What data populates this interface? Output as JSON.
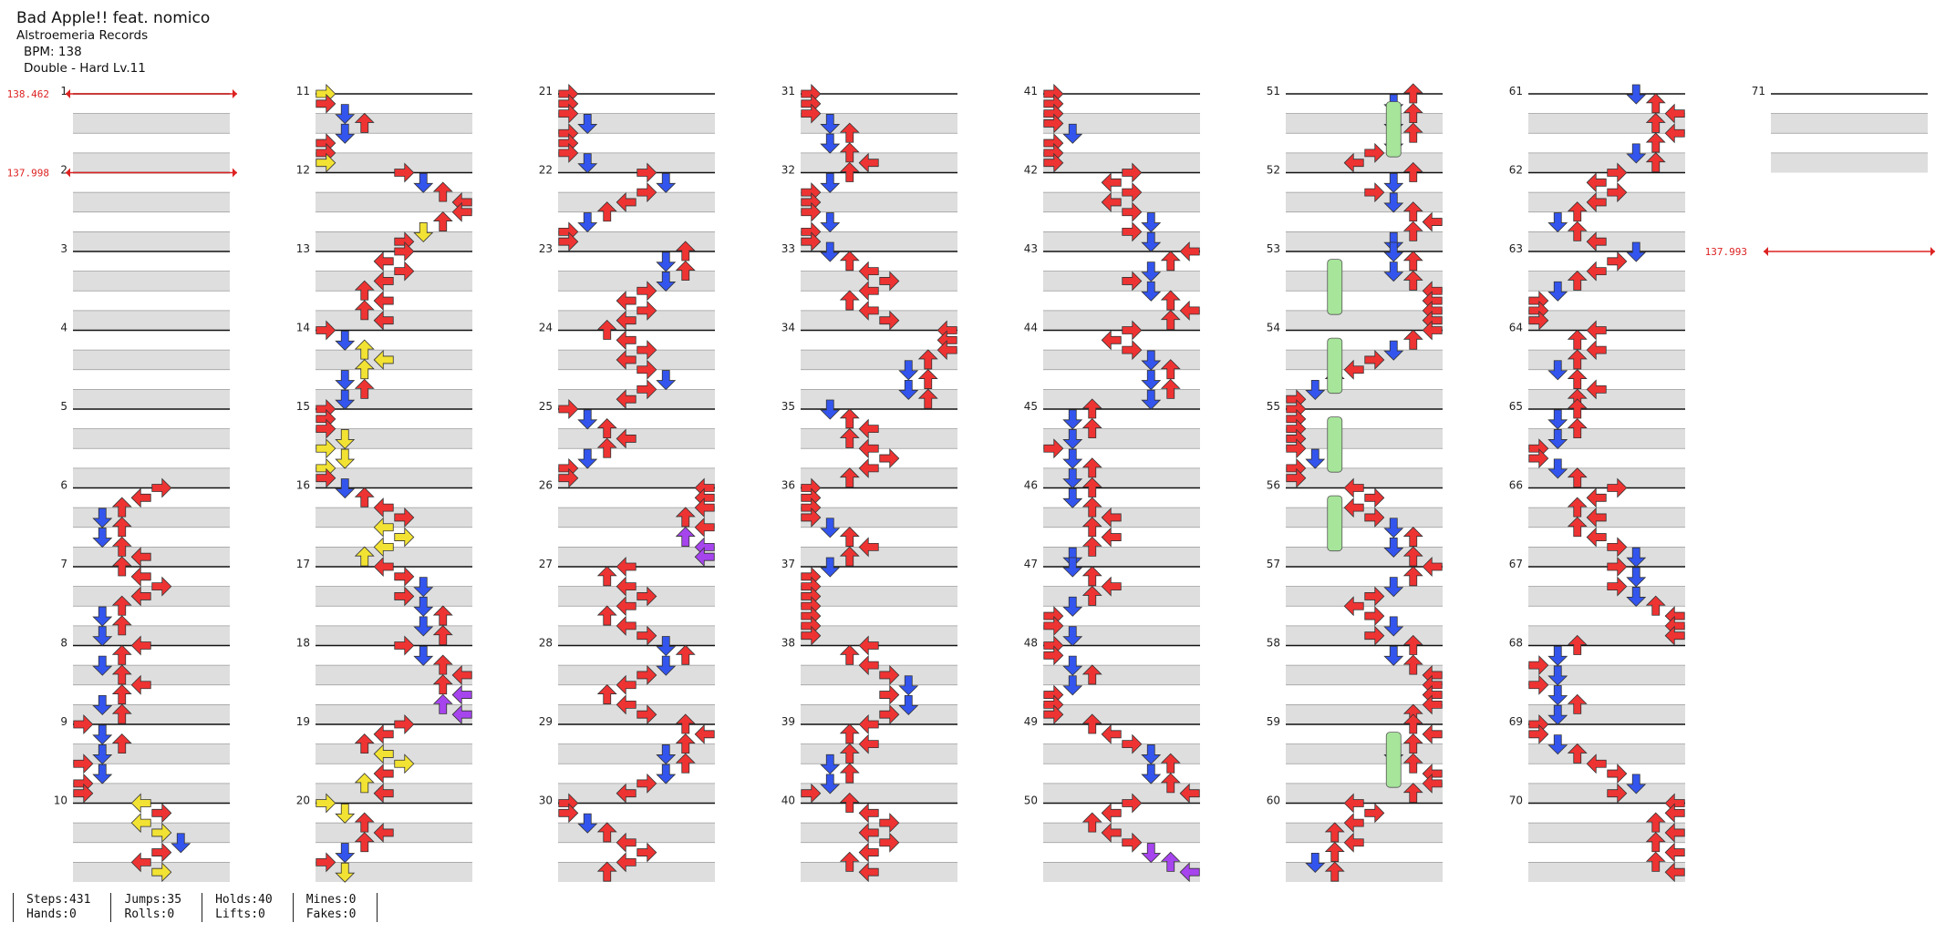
{
  "header": {
    "title": "Bad Apple!! feat. nomico",
    "artist": "Alstroemeria Records",
    "bpm": "BPM: 138",
    "difficulty": "Double - Hard Lv.11"
  },
  "bpm_changes": [
    {
      "label": "138.462",
      "measure": 1
    },
    {
      "label": "137.998",
      "measure": 2
    },
    {
      "label": "137.993",
      "measure": 73
    }
  ],
  "measure_count": 71,
  "stats": [
    [
      "Steps:431",
      "Hands:0"
    ],
    [
      "Jumps:35",
      "Rolls:0"
    ],
    [
      "Holds:40",
      "Lifts:0"
    ],
    [
      "Mines:0",
      "Fakes:0"
    ]
  ],
  "colors": {
    "red": "#ee3333",
    "blue": "#3355ee",
    "yellow": "#f2e233",
    "purple": "#a644ee",
    "green": "#a6e59a",
    "bpm": "#dd2222"
  }
}
